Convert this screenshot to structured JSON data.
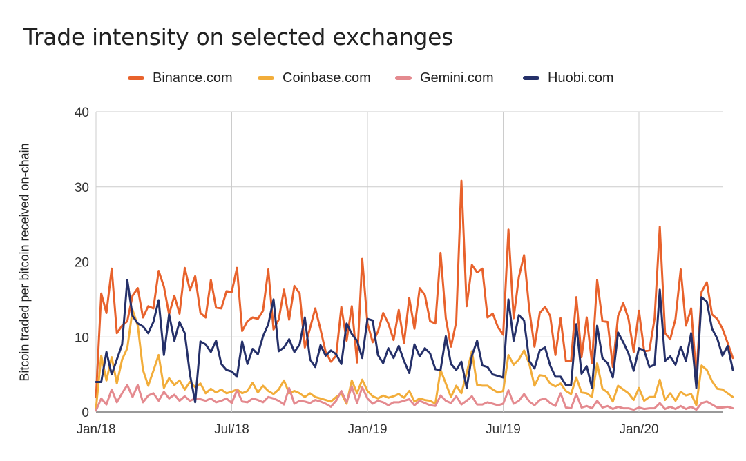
{
  "chart_data": {
    "type": "line",
    "title": "Trade intensity on selected exchanges",
    "xlabel": "",
    "ylabel": "Bitcoin traded per bitcoin received on-chain",
    "ylim": [
      0,
      40
    ],
    "yticks": [
      "0",
      "10",
      "20",
      "30",
      "40"
    ],
    "xticks": [
      "Jan/18",
      "Jul/18",
      "Jan/19",
      "Jul/19",
      "Jan/20"
    ],
    "legend_position": "top",
    "grid": true,
    "series": [
      {
        "name": "Binance.com",
        "color": "#e8622c",
        "values": [
          2,
          15.8,
          13.2,
          19.1,
          10.5,
          11.5,
          12.1,
          15.5,
          16.5,
          12.6,
          14.1,
          13.8,
          18.8,
          16.7,
          13,
          15.5,
          13.1,
          19.2,
          16.2,
          18.1,
          13.2,
          12.6,
          17.6,
          13.9,
          13.8,
          16.1,
          16,
          19.2,
          10.8,
          12.1,
          12.6,
          12.4,
          13.5,
          19,
          11,
          12.3,
          16.3,
          12.3,
          16.8,
          15.8,
          8.6,
          11.2,
          13.8,
          11,
          8,
          6.7,
          7.5,
          14,
          9.5,
          14.1,
          6.6,
          20.4,
          11.8,
          9.3,
          10.7,
          13.2,
          11.8,
          9.6,
          13.6,
          9.2,
          15.2,
          11.1,
          16.5,
          15.6,
          12.1,
          11.8,
          21.2,
          12.5,
          8.7,
          12,
          30.8,
          14.1,
          19.6,
          18.6,
          19.1,
          12.6,
          13.1,
          11.3,
          10.3,
          24.3,
          12.5,
          18,
          20.9,
          13.6,
          8.7,
          13.2,
          14,
          12.8,
          7.6,
          12.5,
          6.8,
          6.8,
          15.3,
          7.3,
          12.6,
          6.5,
          17.6,
          12.1,
          12,
          6,
          12.8,
          14.5,
          12.4,
          8,
          13.5,
          8.1,
          8.2,
          12.5,
          24.7,
          10.5,
          9.7,
          12.4,
          19,
          11.5,
          13.8,
          4.6,
          16,
          17.3,
          13,
          12.4,
          11.1,
          9.2,
          7.2
        ]
      },
      {
        "name": "Coinbase.com",
        "color": "#f2ad3a",
        "values": [
          0.5,
          7.5,
          4.2,
          7.3,
          3.8,
          7,
          8.5,
          13.6,
          11.5,
          5.6,
          3.5,
          5.5,
          7.6,
          3.2,
          4.5,
          3.6,
          4.2,
          3,
          4,
          3.3,
          3.8,
          2.5,
          3.1,
          2.6,
          3,
          2.5,
          2.7,
          3,
          2.5,
          2.8,
          3.9,
          2.6,
          3.5,
          2.8,
          2.4,
          3,
          4.2,
          2.5,
          2.8,
          2.5,
          2,
          2.5,
          2,
          1.8,
          1.6,
          1.4,
          2,
          2.5,
          1.1,
          4.2,
          2.5,
          4.3,
          2.8,
          2.1,
          1.8,
          2.2,
          1.9,
          2.1,
          2.4,
          1.9,
          2.8,
          1.4,
          1.8,
          1.6,
          1.5,
          1.1,
          5.6,
          3.8,
          2,
          3.5,
          2.5,
          5.2,
          8.1,
          3.6,
          3.5,
          3.5,
          3,
          2.6,
          2.8,
          7.6,
          6.3,
          7,
          8.2,
          6.4,
          3.5,
          4.9,
          4.8,
          3.8,
          3.4,
          3.8,
          2.8,
          2.4,
          4.6,
          2.6,
          2.5,
          2,
          6.5,
          3.1,
          2.6,
          1.4,
          3.5,
          3,
          2.5,
          1.6,
          3.2,
          1.5,
          2,
          2,
          4.3,
          1.6,
          2.5,
          1.5,
          2.7,
          2.2,
          2.4,
          0.9,
          6.2,
          5.6,
          4.1,
          3.1,
          3,
          2.5,
          2
        ]
      },
      {
        "name": "Gemini.com",
        "color": "#e48a8f",
        "values": [
          0.2,
          1.8,
          1,
          3,
          1.3,
          2.5,
          3.6,
          2,
          3.6,
          1.3,
          2.2,
          2.5,
          1.5,
          2.7,
          1.8,
          2.3,
          1.5,
          2.1,
          1.5,
          1.8,
          1.7,
          1.5,
          1.8,
          1.3,
          1.5,
          1.8,
          1.2,
          2.9,
          1.4,
          1.3,
          1.8,
          1.6,
          1.3,
          2,
          1.8,
          1.5,
          1,
          3.2,
          1.1,
          1.5,
          1.4,
          1.2,
          1.6,
          1.4,
          1.1,
          0.7,
          1.5,
          2.8,
          1.3,
          3.4,
          1.2,
          3.3,
          1.8,
          1.1,
          1.5,
          1.3,
          0.9,
          1.3,
          1.3,
          1.5,
          1.7,
          0.9,
          1.5,
          1.2,
          0.9,
          0.8,
          2.2,
          1.5,
          1.2,
          2.1,
          1,
          1.5,
          2.1,
          1,
          1,
          1.3,
          1.1,
          0.9,
          1.1,
          2.9,
          1.1,
          1.5,
          2.4,
          1.4,
          0.9,
          1.6,
          1.8,
          1.2,
          0.8,
          2.5,
          0.6,
          0.5,
          2.4,
          0.6,
          0.8,
          0.5,
          1.5,
          0.6,
          0.8,
          0.4,
          0.7,
          0.5,
          0.5,
          0.3,
          0.6,
          0.4,
          0.5,
          0.5,
          1.2,
          0.4,
          0.7,
          0.4,
          0.8,
          0.4,
          0.7,
          0.3,
          1.2,
          1.4,
          1,
          0.6,
          0.6,
          0.7,
          0.5
        ]
      },
      {
        "name": "Huobi.com",
        "color": "#253069",
        "values": [
          4,
          4,
          8,
          5,
          7,
          9,
          17.6,
          12.8,
          11.8,
          11.4,
          10.5,
          12,
          14.9,
          7.6,
          13,
          9.5,
          12,
          10.5,
          5,
          1.3,
          9.4,
          9,
          8,
          9.5,
          6.4,
          5.6,
          5.4,
          4.7,
          9.4,
          6.4,
          8.4,
          7.7,
          10.1,
          11.7,
          15,
          8.1,
          8.6,
          9.7,
          8,
          9,
          12.6,
          7,
          6,
          8.9,
          7.5,
          8.2,
          7.7,
          6.4,
          11.8,
          10.4,
          9.5,
          7.2,
          12.4,
          12.2,
          7.6,
          6.5,
          8.5,
          7.2,
          8.8,
          6.8,
          5.2,
          9,
          7.4,
          8.5,
          7.8,
          5.7,
          5.6,
          10.1,
          6.4,
          5.6,
          6.7,
          3.2,
          7.5,
          9.5,
          6.2,
          6,
          5,
          4.8,
          4.6,
          15,
          9.5,
          12.9,
          12.2,
          6.8,
          5.8,
          8.2,
          8.6,
          6.2,
          4.7,
          4.7,
          3.6,
          3.6,
          11.7,
          5.1,
          6.1,
          3.2,
          11.5,
          7.2,
          6.5,
          4.6,
          10.6,
          9.3,
          7.8,
          5.5,
          8.5,
          8.2,
          6,
          6.3,
          16.3,
          6.8,
          7.4,
          6.3,
          8.7,
          6.8,
          10.5,
          3.2,
          15.3,
          14.7,
          11.1,
          9.8,
          7.5,
          8.8,
          5.6
        ]
      }
    ]
  }
}
